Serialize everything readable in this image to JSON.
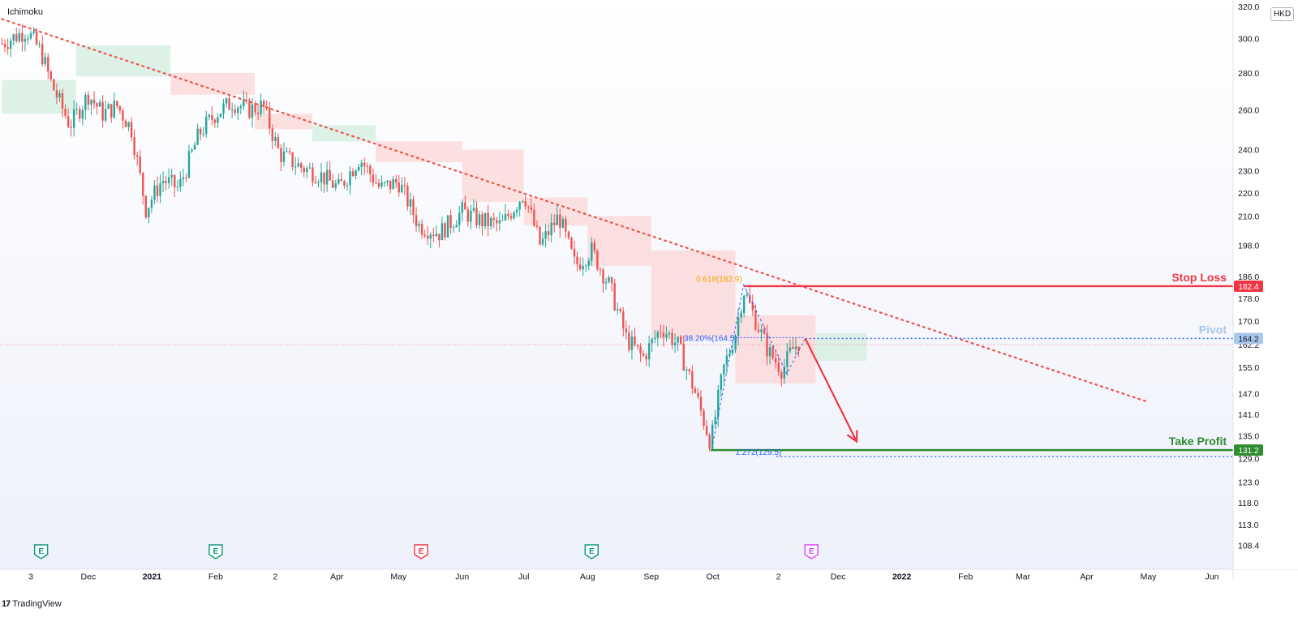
{
  "indicator": {
    "name": "Ichimoku"
  },
  "brand": {
    "logo": "17",
    "name": "TradingView"
  },
  "currency": "HKD",
  "colors": {
    "up": "#26a69a",
    "down": "#ef5350",
    "stop": "#f23645",
    "take": "#2e8b2e",
    "pivot": "#2962ff",
    "pivot_label": "#a9c7ea",
    "fib_label": "#f0a500",
    "fib_blue": "#2962ff",
    "cloud_green": "#d8eee2",
    "cloud_red": "#fbdada"
  },
  "chart_data": {
    "type": "candlestick",
    "title": "",
    "symbol_currency": "HKD",
    "y_axis": {
      "scale": "log",
      "range": [
        106,
        320
      ],
      "ticks": [
        "320.0",
        "300.0",
        "280.0",
        "260.0",
        "240.0",
        "230.0",
        "220.0",
        "210.0",
        "198.0",
        "186.0",
        "178.0",
        "170.0",
        "162.2",
        "155.0",
        "147.0",
        "141.0",
        "135.0",
        "129.0",
        "123.0",
        "118.0",
        "113.0",
        "108.4"
      ]
    },
    "x_axis": {
      "ticks": [
        {
          "label": "3",
          "date": "2020-11-03"
        },
        {
          "label": "Dec",
          "date": "2020-12-01"
        },
        {
          "label": "2021",
          "date": "2021-01-01"
        },
        {
          "label": "Feb",
          "date": "2021-02-01"
        },
        {
          "label": "2",
          "date": "2021-03-02"
        },
        {
          "label": "Apr",
          "date": "2021-04-01"
        },
        {
          "label": "May",
          "date": "2021-05-01"
        },
        {
          "label": "Jun",
          "date": "2021-06-01"
        },
        {
          "label": "Jul",
          "date": "2021-07-01"
        },
        {
          "label": "Aug",
          "date": "2021-08-01"
        },
        {
          "label": "Sep",
          "date": "2021-09-01"
        },
        {
          "label": "Oct",
          "date": "2021-10-01"
        },
        {
          "label": "2",
          "date": "2021-11-02"
        },
        {
          "label": "Dec",
          "date": "2021-12-01"
        },
        {
          "label": "2022",
          "date": "2022-01-01"
        },
        {
          "label": "Feb",
          "date": "2022-02-01"
        },
        {
          "label": "Mar",
          "date": "2022-03-01"
        },
        {
          "label": "Apr",
          "date": "2022-04-01"
        },
        {
          "label": "May",
          "date": "2022-05-01"
        },
        {
          "label": "Jun",
          "date": "2022-06-01"
        }
      ]
    },
    "price_path": [
      {
        "date": "2020-10-20",
        "close": 297
      },
      {
        "date": "2020-11-01",
        "close": 305
      },
      {
        "date": "2020-11-08",
        "close": 292
      },
      {
        "date": "2020-11-13",
        "close": 274
      },
      {
        "date": "2020-11-22",
        "close": 252
      },
      {
        "date": "2020-12-01",
        "close": 268
      },
      {
        "date": "2020-12-08",
        "close": 258
      },
      {
        "date": "2020-12-15",
        "close": 262
      },
      {
        "date": "2020-12-22",
        "close": 250
      },
      {
        "date": "2020-12-29",
        "close": 213
      },
      {
        "date": "2021-01-06",
        "close": 226
      },
      {
        "date": "2021-01-14",
        "close": 222
      },
      {
        "date": "2021-01-24",
        "close": 248
      },
      {
        "date": "2021-02-01",
        "close": 258
      },
      {
        "date": "2021-02-09",
        "close": 264
      },
      {
        "date": "2021-02-17",
        "close": 260
      },
      {
        "date": "2021-02-24",
        "close": 262
      },
      {
        "date": "2021-03-04",
        "close": 238
      },
      {
        "date": "2021-03-14",
        "close": 232
      },
      {
        "date": "2021-03-24",
        "close": 228
      },
      {
        "date": "2021-04-02",
        "close": 222
      },
      {
        "date": "2021-04-12",
        "close": 236
      },
      {
        "date": "2021-04-22",
        "close": 222
      },
      {
        "date": "2021-05-01",
        "close": 225
      },
      {
        "date": "2021-05-11",
        "close": 206
      },
      {
        "date": "2021-05-21",
        "close": 203
      },
      {
        "date": "2021-06-01",
        "close": 212
      },
      {
        "date": "2021-06-10",
        "close": 208
      },
      {
        "date": "2021-06-20",
        "close": 206
      },
      {
        "date": "2021-07-01",
        "close": 220
      },
      {
        "date": "2021-07-09",
        "close": 198
      },
      {
        "date": "2021-07-18",
        "close": 210
      },
      {
        "date": "2021-07-26",
        "close": 190
      },
      {
        "date": "2021-08-03",
        "close": 196
      },
      {
        "date": "2021-08-12",
        "close": 182
      },
      {
        "date": "2021-08-20",
        "close": 164
      },
      {
        "date": "2021-08-28",
        "close": 158
      },
      {
        "date": "2021-09-06",
        "close": 168
      },
      {
        "date": "2021-09-14",
        "close": 162
      },
      {
        "date": "2021-09-22",
        "close": 148
      },
      {
        "date": "2021-09-30",
        "close": 133
      },
      {
        "date": "2021-10-06",
        "close": 154
      },
      {
        "date": "2021-10-12",
        "close": 166
      },
      {
        "date": "2021-10-16",
        "close": 181
      },
      {
        "date": "2021-10-22",
        "close": 170
      },
      {
        "date": "2021-10-28",
        "close": 160
      },
      {
        "date": "2021-11-04",
        "close": 154
      },
      {
        "date": "2021-11-08",
        "close": 160
      },
      {
        "date": "2021-11-12",
        "close": 163
      }
    ],
    "cloud": [
      {
        "start": "2020-10-20",
        "end": "2020-11-25",
        "lower": 258,
        "upper": 276,
        "color": "green"
      },
      {
        "start": "2020-11-25",
        "end": "2021-01-10",
        "lower": 278,
        "upper": 296,
        "color": "green"
      },
      {
        "start": "2021-01-10",
        "end": "2021-02-20",
        "lower": 268,
        "upper": 280,
        "color": "red"
      },
      {
        "start": "2021-02-20",
        "end": "2021-03-20",
        "lower": 250,
        "upper": 258,
        "color": "red"
      },
      {
        "start": "2021-03-20",
        "end": "2021-04-20",
        "lower": 244,
        "upper": 252,
        "color": "green"
      },
      {
        "start": "2021-04-20",
        "end": "2021-06-01",
        "lower": 234,
        "upper": 244,
        "color": "red"
      },
      {
        "start": "2021-06-01",
        "end": "2021-07-01",
        "lower": 216,
        "upper": 240,
        "color": "red"
      },
      {
        "start": "2021-07-01",
        "end": "2021-08-01",
        "lower": 206,
        "upper": 218,
        "color": "red"
      },
      {
        "start": "2021-08-01",
        "end": "2021-09-01",
        "lower": 190,
        "upper": 210,
        "color": "red"
      },
      {
        "start": "2021-09-01",
        "end": "2021-10-12",
        "lower": 164,
        "upper": 196,
        "color": "red"
      },
      {
        "start": "2021-10-12",
        "end": "2021-11-20",
        "lower": 150,
        "upper": 172,
        "color": "red"
      },
      {
        "start": "2021-11-20",
        "end": "2021-12-15",
        "lower": 157,
        "upper": 166,
        "color": "green"
      }
    ],
    "trendline": {
      "from": {
        "date": "2020-10-20",
        "value": 312
      },
      "to": {
        "date": "2022-05-01",
        "value": 144.5
      }
    },
    "current_price_line": 162.2,
    "levels": [
      {
        "name": "Stop Loss",
        "value": 182.4,
        "label": "182.4",
        "start": "2021-10-16",
        "style": "solid"
      },
      {
        "name": "Pivot",
        "value": 164.2,
        "label": "164.2",
        "start": "2021-11-15",
        "style": "dotted"
      },
      {
        "name": "Take Profit",
        "value": 131.2,
        "label": "131.2",
        "start": "2021-09-30",
        "style": "solid"
      }
    ],
    "fibonacci": [
      {
        "label": "0.618(182.9)",
        "value": 182.9,
        "date": "2021-10-16"
      },
      {
        "label": "38.20%(164.5)",
        "value": 164.5,
        "date": "2021-10-16"
      },
      {
        "label": "1.272(129.5)",
        "value": 129.5,
        "date": "2021-10-01"
      }
    ],
    "projection_arrow": {
      "from": {
        "date": "2021-11-15",
        "value": 164.2
      },
      "to": {
        "date": "2021-12-10",
        "value": 133.5
      }
    },
    "earnings_markers": [
      {
        "label": "E",
        "date": "2020-11-08",
        "color": "green"
      },
      {
        "label": "E",
        "date": "2021-02-01",
        "color": "green"
      },
      {
        "label": "E",
        "date": "2021-05-12",
        "color": "red"
      },
      {
        "label": "E",
        "date": "2021-08-03",
        "color": "green"
      },
      {
        "label": "E",
        "date": "2021-11-18",
        "color": "magenta"
      }
    ]
  }
}
